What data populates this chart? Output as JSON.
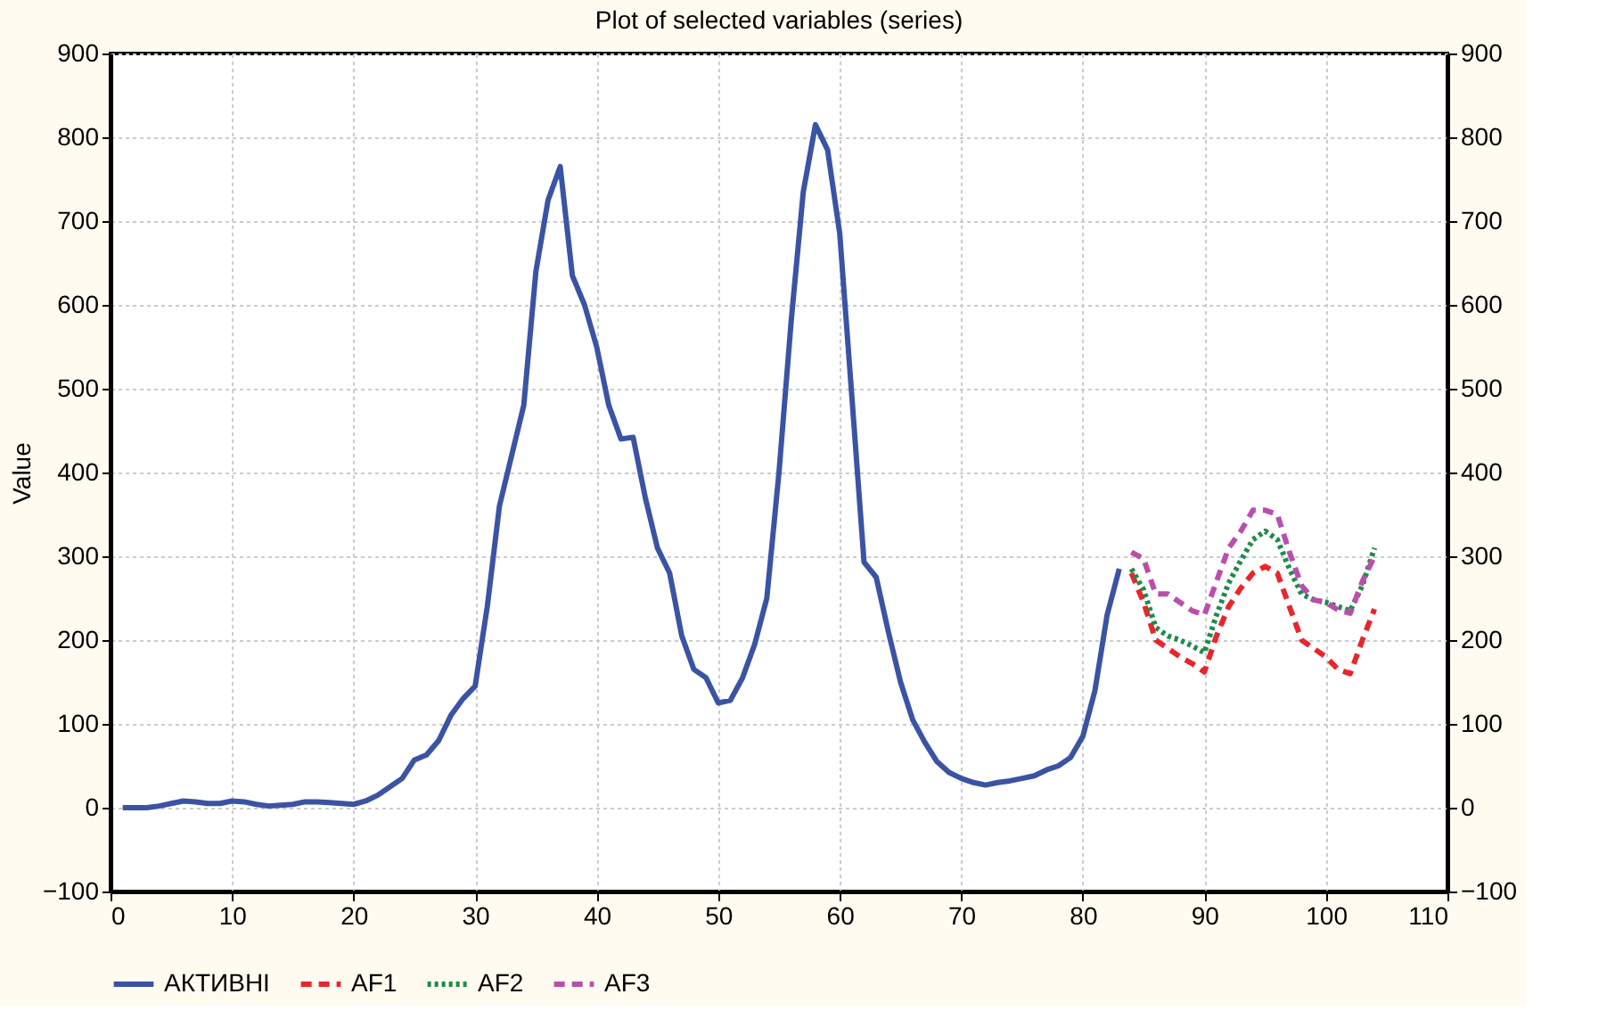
{
  "chart_data": {
    "type": "line",
    "title": "Plot of selected variables (series)",
    "ylabel": "Value",
    "xlim": [
      0,
      110
    ],
    "xticks": [
      0,
      10,
      20,
      30,
      40,
      50,
      60,
      70,
      80,
      90,
      100,
      110
    ],
    "ylim": [
      -100,
      900
    ],
    "yticks": [
      -100,
      0,
      100,
      200,
      300,
      400,
      500,
      600,
      700,
      800,
      900
    ],
    "y2lim": [
      -100,
      900
    ],
    "y2ticks": [
      -100,
      0,
      100,
      200,
      300,
      400,
      500,
      600,
      700,
      800,
      900
    ],
    "grid": true,
    "legend": "bottom",
    "marker": "none",
    "series": [
      {
        "name": "АКТИВНІ",
        "color": "#3a53a4",
        "line_style": "solid",
        "x": [
          1,
          2,
          3,
          4,
          5,
          6,
          7,
          8,
          9,
          10,
          11,
          12,
          13,
          14,
          15,
          16,
          17,
          18,
          19,
          20,
          21,
          22,
          23,
          24,
          25,
          26,
          27,
          28,
          29,
          30,
          31,
          32,
          33,
          34,
          35,
          36,
          37,
          38,
          39,
          40,
          41,
          42,
          43,
          44,
          45,
          46,
          47,
          48,
          49,
          50,
          51,
          52,
          53,
          54,
          55,
          56,
          57,
          58,
          59,
          60,
          61,
          62,
          63,
          64,
          65,
          66,
          67,
          68,
          69,
          70,
          71,
          72,
          73,
          74,
          75,
          76,
          77,
          78,
          79,
          80,
          81,
          82,
          83
        ],
        "values": [
          0,
          0,
          0,
          2,
          5,
          8,
          7,
          5,
          5,
          8,
          7,
          4,
          2,
          3,
          4,
          7,
          7,
          6,
          5,
          4,
          8,
          15,
          25,
          35,
          57,
          63,
          80,
          110,
          130,
          145,
          240,
          360,
          420,
          480,
          640,
          725,
          765,
          635,
          600,
          550,
          480,
          440,
          442,
          370,
          310,
          280,
          205,
          165,
          155,
          125,
          128,
          155,
          195,
          250,
          400,
          580,
          735,
          815,
          785,
          685,
          490,
          293,
          275,
          210,
          150,
          105,
          78,
          55,
          42,
          35,
          30,
          27,
          30,
          32,
          35,
          38,
          45,
          50,
          60,
          85,
          140,
          230,
          285
        ]
      },
      {
        "name": "AF1",
        "color": "#e8262b",
        "line_style": "dashed",
        "x": [
          84,
          85,
          86,
          87,
          88,
          89,
          90,
          91,
          92,
          93,
          94,
          95,
          96,
          97,
          98,
          99,
          100,
          101,
          102,
          103,
          104
        ],
        "values": [
          280,
          245,
          200,
          190,
          180,
          172,
          162,
          205,
          240,
          262,
          280,
          288,
          280,
          240,
          200,
          190,
          180,
          165,
          160,
          200,
          237
        ]
      },
      {
        "name": "AF2",
        "color": "#1f8a4c",
        "line_style": "dotted",
        "x": [
          84,
          85,
          86,
          87,
          88,
          89,
          90,
          91,
          92,
          93,
          94,
          95,
          96,
          97,
          98,
          99,
          100,
          101,
          102,
          103,
          104
        ],
        "values": [
          285,
          260,
          215,
          205,
          200,
          193,
          185,
          230,
          268,
          295,
          320,
          330,
          320,
          285,
          255,
          248,
          245,
          240,
          235,
          265,
          310
        ]
      },
      {
        "name": "AF3",
        "color": "#b94fad",
        "line_style": "dashed",
        "x": [
          84,
          85,
          86,
          87,
          88,
          89,
          90,
          91,
          92,
          93,
          94,
          95,
          96,
          97,
          98,
          99,
          100,
          101,
          102,
          103,
          104
        ],
        "values": [
          305,
          297,
          255,
          255,
          245,
          235,
          230,
          270,
          310,
          330,
          355,
          355,
          350,
          305,
          265,
          248,
          245,
          236,
          232,
          270,
          300
        ]
      }
    ]
  }
}
